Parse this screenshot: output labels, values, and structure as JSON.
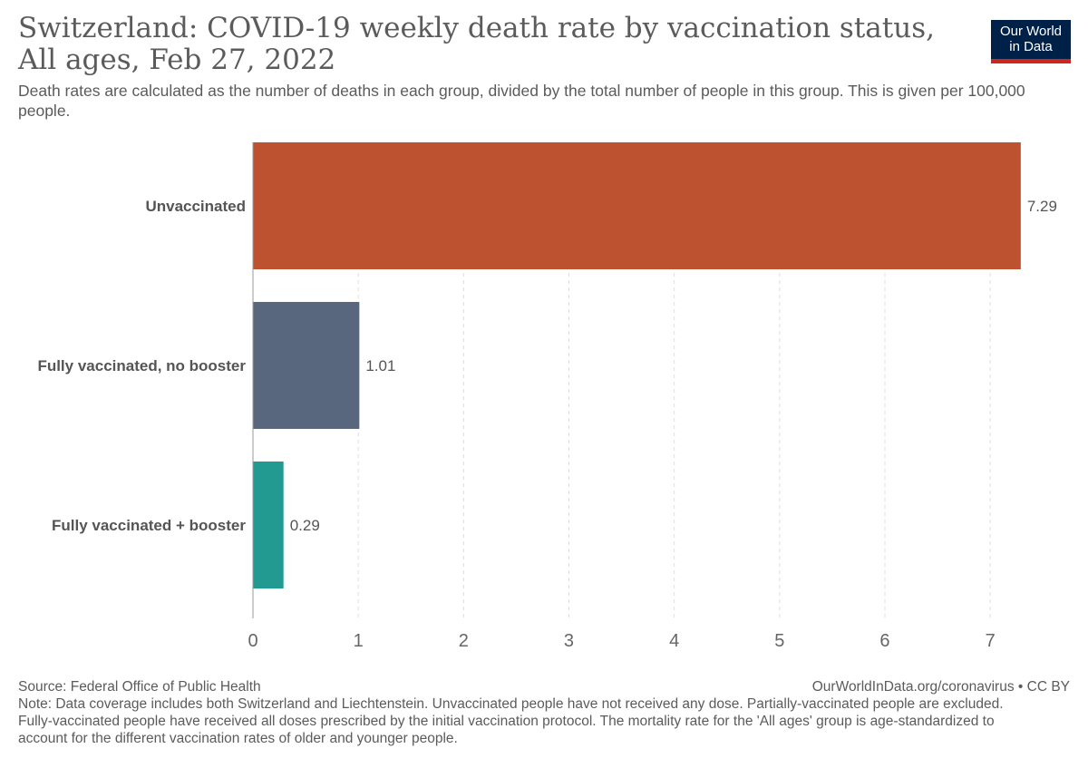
{
  "header": {
    "title": "Switzerland: COVID-19 weekly death rate by vaccination status, All ages, Feb 27, 2022",
    "subtitle": "Death rates are calculated as the number of deaths in each group, divided by the total number of people in this group. This is given per 100,000 people.",
    "logo_line1": "Our World",
    "logo_line2": "in Data"
  },
  "footer": {
    "source": "Source: Federal Office of Public Health",
    "credit": "OurWorldInData.org/coronavirus • CC BY",
    "note": "Note: Data coverage includes both Switzerland and Liechtenstein. Unvaccinated people have not received any dose. Partially-vaccinated people are excluded. Fully-vaccinated people have received all doses prescribed by the initial vaccination protocol. The mortality rate for the 'All ages' group is age-standardized to account for the different vaccination rates of older and younger people."
  },
  "colors": {
    "logo_bg": "#002147",
    "logo_accent": "#ce261e"
  },
  "chart_data": {
    "type": "bar",
    "orientation": "horizontal",
    "title": "Switzerland: COVID-19 weekly death rate by vaccination status, All ages, Feb 27, 2022",
    "categories": [
      "Unvaccinated",
      "Fully vaccinated, no booster",
      "Fully vaccinated + booster"
    ],
    "values": [
      7.29,
      1.01,
      0.29
    ],
    "value_labels": [
      "7.29",
      "1.01",
      "0.29"
    ],
    "colors": [
      "#BC5230",
      "#58677E",
      "#239A91"
    ],
    "xlim": [
      0,
      7.3
    ],
    "xticks": [
      0,
      1,
      2,
      3,
      4,
      5,
      6,
      7
    ],
    "grid": "vertical dashed",
    "xlabel": "",
    "ylabel": ""
  }
}
